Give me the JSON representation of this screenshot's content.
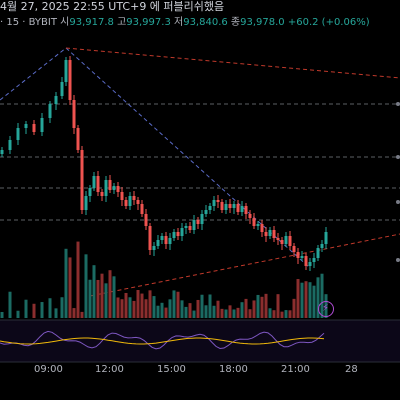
{
  "header": {
    "published_text": "4월 27, 2025 22:55 UTC+9 에 퍼블리쉬했음",
    "interval": "· 15 · BYBIT",
    "open_label": "시",
    "open_value": "93,917.8",
    "high_label": "고",
    "high_value": "93,997.3",
    "low_label": "저",
    "low_value": "93,840.6",
    "close_label": "종",
    "close_value": "93,978.0",
    "change": "+60.2 (+0.06%)"
  },
  "x_axis": {
    "labels": [
      "09:00",
      "12:00",
      "15:00",
      "18:00",
      "21:00",
      "28"
    ]
  },
  "colors": {
    "up": "#26a69a",
    "down": "#ef5350",
    "background": "#000000",
    "trendline_blue": "#5b6cc9",
    "trendline_red": "#c0392b",
    "oscillator": "#7e57c2",
    "oscillator_signal": "#f0b90b",
    "level_line": "#9aa0a6"
  },
  "indicators": {
    "lightning_icon": "lightning-icon"
  }
}
